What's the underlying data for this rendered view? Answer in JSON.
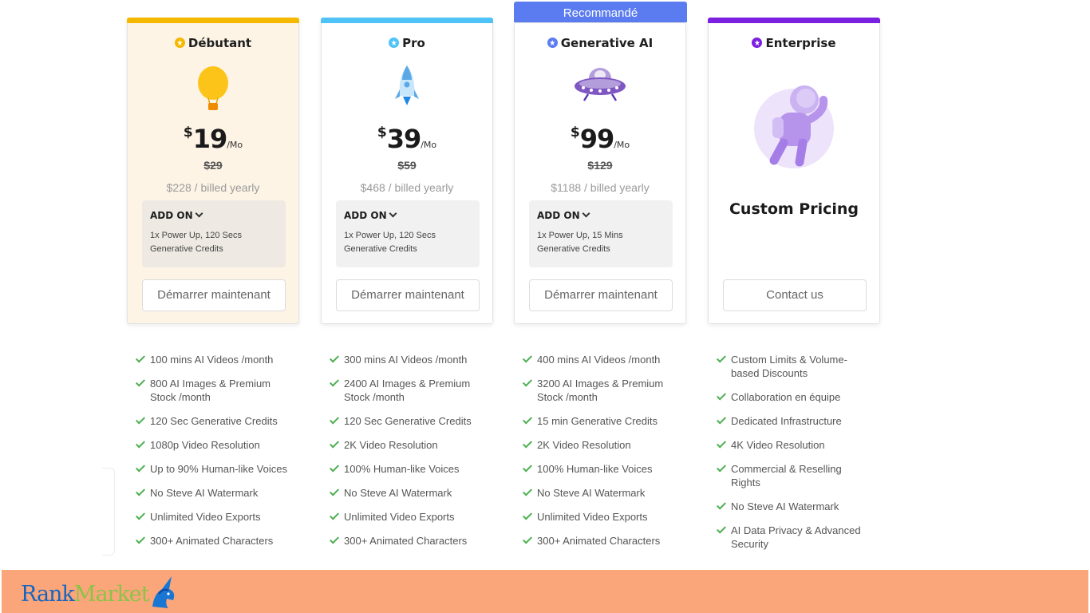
{
  "plans": [
    {
      "name": "Débutant",
      "accent": "#f5b800",
      "currency": "$",
      "price": "19",
      "period": "/Mo",
      "old_price": "$29",
      "yearly": "$228 / billed yearly",
      "addon_title": "ADD ON",
      "addon_desc": "1x Power Up, 120 Secs Generative Credits",
      "cta": "Démarrer maintenant",
      "icon": "balloon-icon",
      "features": [
        "100 mins AI Videos /month",
        "800 AI Images & Premium Stock /month",
        "120 Sec Generative Credits",
        "1080p Video Resolution",
        "Up to 90% Human-like Voices",
        "No Steve AI Watermark",
        "Unlimited Video Exports",
        "300+ Animated Characters"
      ]
    },
    {
      "name": "Pro",
      "accent": "#4fc3f7",
      "currency": "$",
      "price": "39",
      "period": "/Mo",
      "old_price": "$59",
      "yearly": "$468 / billed yearly",
      "addon_title": "ADD ON",
      "addon_desc": "1x Power Up, 120 Secs Generative Credits",
      "cta": "Démarrer maintenant",
      "icon": "rocket-icon",
      "features": [
        "300 mins AI Videos /month",
        "2400 AI Images & Premium Stock /month",
        "120 Sec Generative Credits",
        "2K Video Resolution",
        "100% Human-like Voices",
        "No Steve AI Watermark",
        "Unlimited Video Exports",
        "300+ Animated Characters"
      ]
    },
    {
      "name": "Generative AI",
      "accent": "#5b7cf0",
      "badge": "Recommandé",
      "currency": "$",
      "price": "99",
      "period": "/Mo",
      "old_price": "$129",
      "yearly": "$1188 / billed yearly",
      "addon_title": "ADD ON",
      "addon_desc": "1x Power Up, 15 Mins Generative Credits",
      "cta": "Démarrer maintenant",
      "icon": "ufo-icon",
      "features": [
        "400 mins AI Videos /month",
        "3200 AI Images & Premium Stock /month",
        "15 min Generative Credits",
        "2K Video Resolution",
        "100% Human-like Voices",
        "No Steve AI Watermark",
        "Unlimited Video Exports",
        "300+ Animated Characters"
      ]
    },
    {
      "name": "Enterprise",
      "accent": "#7b1fe0",
      "custom_pricing": "Custom Pricing",
      "cta": "Contact us",
      "icon": "astronaut-icon",
      "features": [
        "Custom Limits & Volume-based Discounts",
        "Collaboration en équipe",
        "Dedicated Infrastructure",
        "4K Video Resolution",
        "Commercial & Reselling Rights",
        "No Steve AI Watermark",
        "AI Data Privacy & Advanced Security"
      ]
    }
  ],
  "footer": {
    "logo_part1": "Rank",
    "logo_part2": "Market",
    "logo_icon": "unicorn-icon",
    "background": "#fba67a"
  }
}
